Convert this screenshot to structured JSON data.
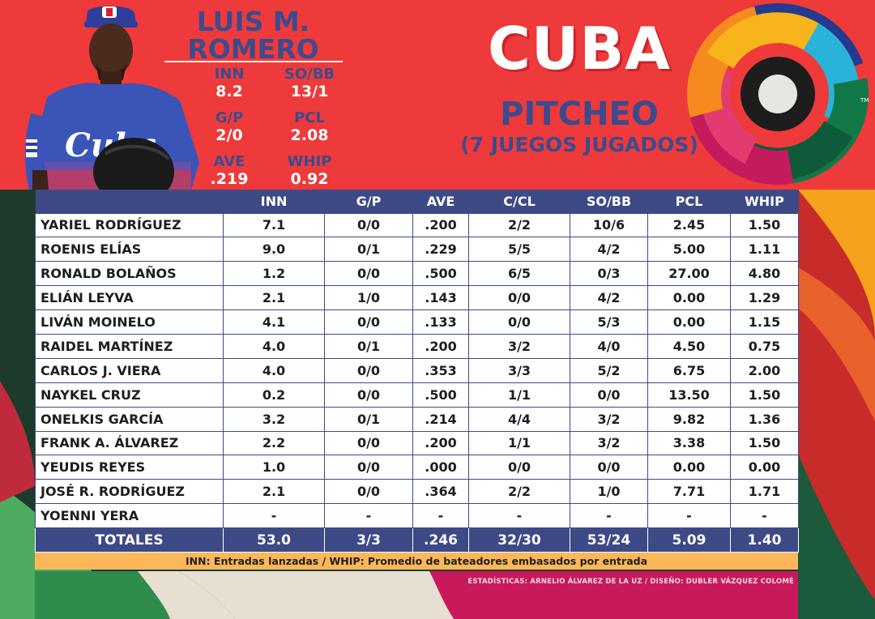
{
  "header": {
    "player_first": "LUIS M.",
    "player_last": "ROMERO",
    "player_stats": [
      {
        "label": "INN",
        "value": "8.2"
      },
      {
        "label": "SO/BB",
        "value": "13/1"
      },
      {
        "label": "G/P",
        "value": "2/0"
      },
      {
        "label": "PCL",
        "value": "2.08"
      },
      {
        "label": "AVE",
        "value": ".219"
      },
      {
        "label": "WHIP",
        "value": "0.92"
      }
    ],
    "jersey_text": "Cuba",
    "team": "CUBA",
    "section": "PITCHEO",
    "games": "(7 JUEGOS JUGADOS)",
    "trademark": "TM"
  },
  "table": {
    "columns": [
      "",
      "INN",
      "G/P",
      "AVE",
      "C/CL",
      "SO/BB",
      "PCL",
      "WHIP"
    ],
    "rows": [
      [
        "YARIEL RODRÍGUEZ",
        "7.1",
        "0/0",
        ".200",
        "2/2",
        "10/6",
        "2.45",
        "1.50"
      ],
      [
        "ROENIS ELÍAS",
        "9.0",
        "0/1",
        ".229",
        "5/5",
        "4/2",
        "5.00",
        "1.11"
      ],
      [
        "RONALD BOLAÑOS",
        "1.2",
        "0/0",
        ".500",
        "6/5",
        "0/3",
        "27.00",
        "4.80"
      ],
      [
        "ELIÁN LEYVA",
        "2.1",
        "1/0",
        ".143",
        "0/0",
        "4/2",
        "0.00",
        "1.29"
      ],
      [
        "LIVÁN MOINELO",
        "4.1",
        "0/0",
        ".133",
        "0/0",
        "5/3",
        "0.00",
        "1.15"
      ],
      [
        "RAIDEL MARTÍNEZ",
        "4.0",
        "0/1",
        ".200",
        "3/2",
        "4/0",
        "4.50",
        "0.75"
      ],
      [
        "CARLOS J. VIERA",
        "4.0",
        "0/0",
        ".353",
        "3/3",
        "5/2",
        "6.75",
        "2.00"
      ],
      [
        "NAYKEL CRUZ",
        "0.2",
        "0/0",
        ".500",
        "1/1",
        "0/0",
        "13.50",
        "1.50"
      ],
      [
        "ONELKIS GARCÍA",
        "3.2",
        "0/1",
        ".214",
        "4/4",
        "3/2",
        "9.82",
        "1.36"
      ],
      [
        "FRANK A. ÁLVAREZ",
        "2.2",
        "0/0",
        ".200",
        "1/1",
        "3/2",
        "3.38",
        "1.50"
      ],
      [
        "YEUDIS REYES",
        "1.0",
        "0/0",
        ".000",
        "0/0",
        "0/0",
        "0.00",
        "0.00"
      ],
      [
        "JOSÉ R. RODRÍGUEZ",
        "2.1",
        "0/0",
        ".364",
        "2/2",
        "1/0",
        "7.71",
        "1.71"
      ],
      [
        "YOENNI YERA",
        "-",
        "-",
        "-",
        "-",
        "-",
        "-",
        "-"
      ]
    ],
    "totals": [
      "TOTALES",
      "53.0",
      "3/3",
      ".246",
      "32/30",
      "53/24",
      "5.09",
      "1.40"
    ]
  },
  "note": "INN: Entradas lanzadas / WHIP: Promedio de bateadores embasados por entrada",
  "credits": "ESTADÍSTICAS: ARNELIO ÁLVAREZ DE LA UZ / DISEÑO: DUBLER VÁZQUEZ COLOMÉ",
  "colors": {
    "header_red": "#ee3a3a",
    "navy": "#3d4a86",
    "note_orange": "#fbb75a"
  }
}
